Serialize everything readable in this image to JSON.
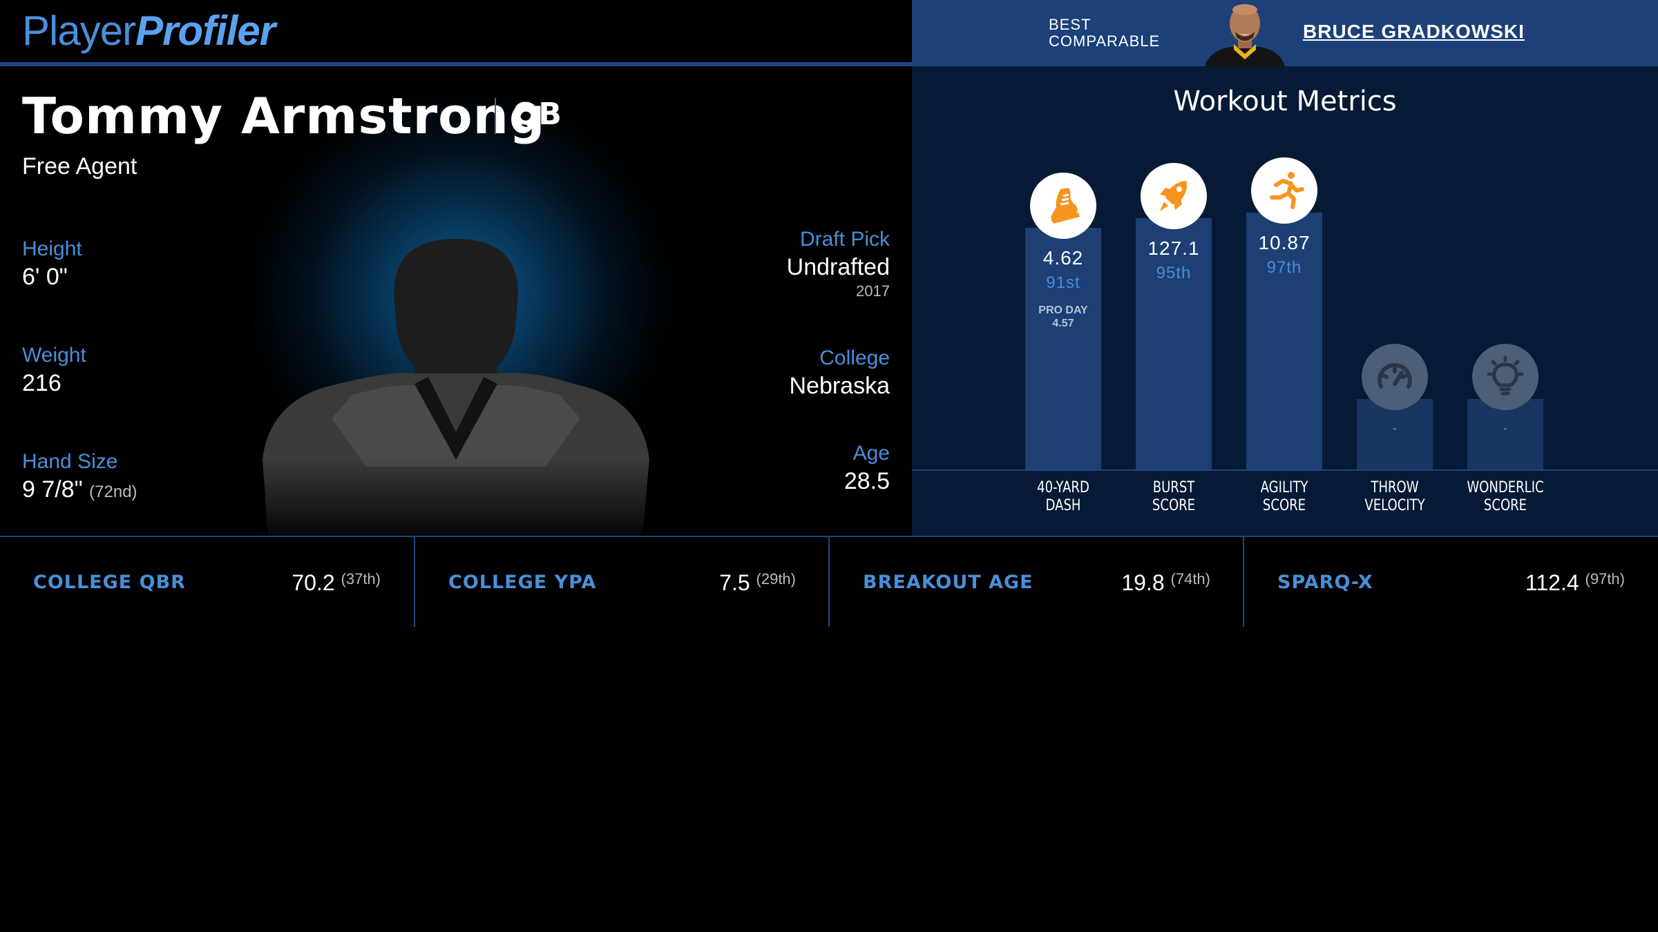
{
  "header": {
    "logo_part1": "Player",
    "logo_part2": "Profiler",
    "comparable_label_line1": "BEST",
    "comparable_label_line2": "COMPARABLE",
    "comparable_name": "BRUCE GRADKOWSKI"
  },
  "player": {
    "name": "Tommy Armstrong",
    "position": "QB",
    "team": "Free Agent",
    "height": {
      "label": "Height",
      "value": "6' 0\""
    },
    "weight": {
      "label": "Weight",
      "value": "216"
    },
    "hand_size": {
      "label": "Hand Size",
      "value": "9 7/8\"",
      "rank": "(72nd)"
    },
    "draft_pick": {
      "label": "Draft Pick",
      "value": "Undrafted",
      "year": "2017"
    },
    "college": {
      "label": "College",
      "value": "Nebraska"
    },
    "age": {
      "label": "Age",
      "value": "28.5"
    }
  },
  "workout": {
    "title": "Workout Metrics",
    "metrics": [
      {
        "label_line1": "40-YARD",
        "label_line2": "DASH",
        "value": "4.62",
        "percentile": "91st",
        "percentile_num": 91,
        "extra_line1": "PRO DAY",
        "extra_line2": "4.57",
        "icon": "shoe-icon"
      },
      {
        "label_line1": "BURST",
        "label_line2": "SCORE",
        "value": "127.1",
        "percentile": "95th",
        "percentile_num": 95,
        "icon": "rocket-icon"
      },
      {
        "label_line1": "AGILITY",
        "label_line2": "SCORE",
        "value": "10.87",
        "percentile": "97th",
        "percentile_num": 97,
        "icon": "runner-icon"
      },
      {
        "label_line1": "THROW",
        "label_line2": "VELOCITY",
        "value": "-",
        "percentile": "",
        "icon": "speedometer-icon"
      },
      {
        "label_line1": "WONDERLIC",
        "label_line2": "SCORE",
        "value": "-",
        "percentile": "",
        "icon": "lightbulb-icon"
      }
    ]
  },
  "bottom_stats": [
    {
      "label": "COLLEGE QBR",
      "value": "70.2",
      "rank": "(37th)"
    },
    {
      "label": "COLLEGE YPA",
      "value": "7.5",
      "rank": "(29th)"
    },
    {
      "label": "BREAKOUT AGE",
      "value": "19.8",
      "rank": "(74th)"
    },
    {
      "label": "SPARQ-x",
      "value": "112.4",
      "rank": "(97th)"
    }
  ],
  "colors": {
    "accent": "#4a8fd9",
    "header_blue": "#1c4179",
    "bar_blue": "#1d3f74",
    "icon_orange": "#f7941d"
  }
}
